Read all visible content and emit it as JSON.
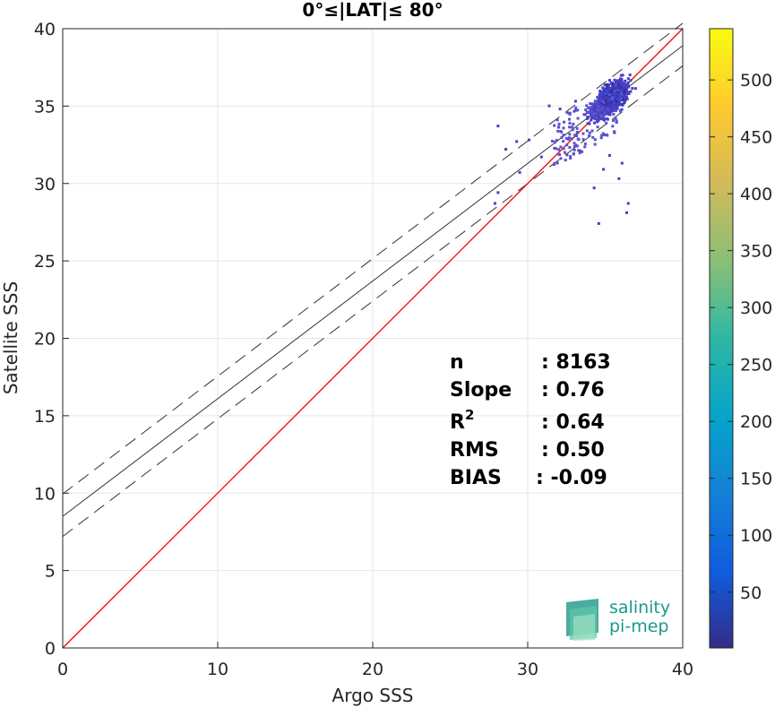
{
  "chart_data": {
    "type": "scatter",
    "title": "0°≤|LAT|≤ 80°",
    "xlabel": "Argo SSS",
    "ylabel": "Satellite SSS",
    "xlim": [
      0,
      40
    ],
    "ylim": [
      0,
      40
    ],
    "xticks": [
      "0",
      "10",
      "20",
      "30",
      "40"
    ],
    "yticks": [
      "0",
      "5",
      "10",
      "15",
      "20",
      "25",
      "30",
      "35",
      "40"
    ],
    "grid": true,
    "reference_lines": {
      "one_to_one": {
        "color": "#ff0000",
        "from": [
          0,
          0
        ],
        "to": [
          40,
          40
        ]
      },
      "regression": {
        "color": "#333333",
        "intercept": 8.5,
        "slope": 0.76
      },
      "upper_bound": {
        "color": "#333333",
        "style": "dashed",
        "intercept": 9.95,
        "slope": 0.76
      },
      "lower_bound": {
        "color": "#333333",
        "style": "dashed",
        "intercept": 7.2,
        "slope": 0.76
      }
    },
    "density_cluster": {
      "core": {
        "x_range": [
          33.0,
          36.8
        ],
        "y_range": [
          33.0,
          37.0
        ]
      },
      "outliers": [
        [
          28.0,
          33.8
        ],
        [
          28.5,
          32.3
        ],
        [
          29.2,
          32.8
        ],
        [
          30.0,
          32.9
        ],
        [
          31.3,
          35.1
        ],
        [
          32.0,
          34.9
        ],
        [
          33.0,
          35.4
        ],
        [
          34.2,
          29.8
        ],
        [
          34.5,
          27.5
        ],
        [
          36.3,
          28.2
        ],
        [
          36.4,
          28.8
        ],
        [
          35.8,
          30.4
        ],
        [
          34.8,
          31.0
        ],
        [
          36.0,
          31.4
        ],
        [
          28.0,
          29.5
        ],
        [
          29.4,
          30.8
        ],
        [
          27.8,
          28.8
        ],
        [
          30.8,
          31.8
        ],
        [
          33.3,
          32.2
        ],
        [
          35.2,
          31.9
        ]
      ]
    },
    "stats": [
      {
        "label": "n",
        "value": ": 8163"
      },
      {
        "label": "Slope",
        "value": ": 0.76"
      },
      {
        "label": "R",
        "sup": "2",
        "value": ": 0.64"
      },
      {
        "label": "RMS",
        "value": ": 0.50"
      },
      {
        "label": "BIAS",
        "value": ": -0.09"
      }
    ],
    "colorbar": {
      "ticks": [
        "50",
        "100",
        "150",
        "200",
        "250",
        "300",
        "350",
        "400",
        "450",
        "500"
      ],
      "range": [
        1,
        545
      ],
      "colormap": "parula"
    }
  },
  "logo": {
    "line1": "salinity",
    "line2": "pi-mep"
  },
  "colors": {
    "one_to_one": "#ff0000",
    "fit": "#333333",
    "logo": "#1a9a8a"
  }
}
